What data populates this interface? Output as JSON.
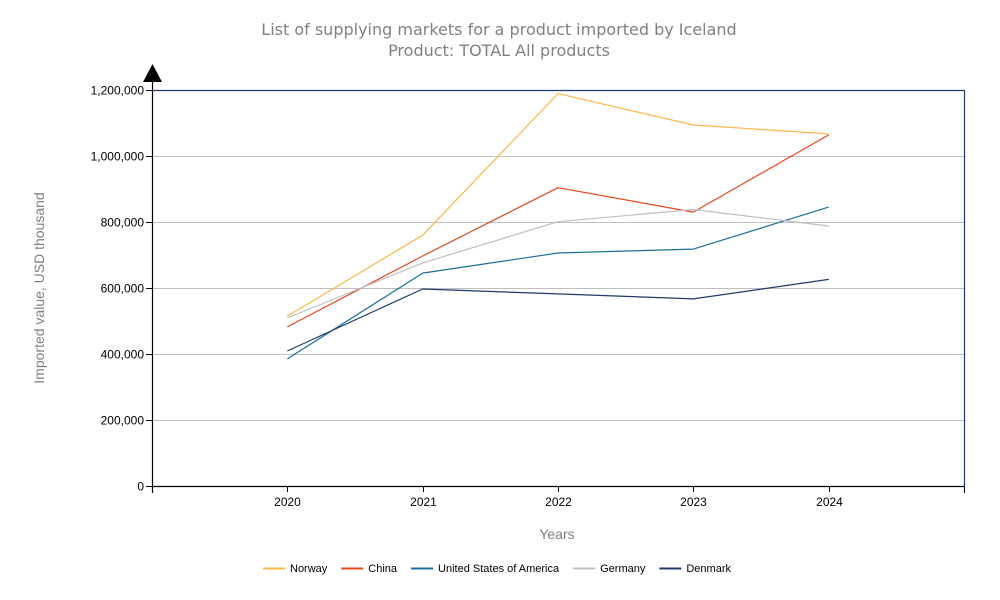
{
  "chart_data": {
    "type": "line",
    "title": "List of supplying markets for a product imported by Iceland",
    "subtitle": "Product: TOTAL All products",
    "xlabel": "Years",
    "ylabel": "Imported value, USD thousand",
    "categories": [
      "2020",
      "2021",
      "2022",
      "2023",
      "2024"
    ],
    "ylim": [
      0,
      1200000
    ],
    "yticks": [
      0,
      200000,
      400000,
      600000,
      800000,
      1000000,
      1200000
    ],
    "ytick_labels": [
      "0",
      "200,000",
      "400,000",
      "600,000",
      "800,000",
      "1,000,000",
      "1,200,000"
    ],
    "grid": "horizontal",
    "legend_position": "bottom",
    "series": [
      {
        "name": "Norway",
        "color": "#F9B84A",
        "values": [
          515000,
          760000,
          1189000,
          1094000,
          1067000
        ]
      },
      {
        "name": "China",
        "color": "#E0481C",
        "values": [
          482000,
          697000,
          904000,
          830000,
          1064000
        ]
      },
      {
        "name": "United States of America",
        "color": "#1B6E98",
        "values": [
          385000,
          645000,
          706000,
          718000,
          845000
        ]
      },
      {
        "name": "Germany",
        "color": "#BFBFBF",
        "values": [
          509000,
          676000,
          801000,
          838000,
          788000
        ]
      },
      {
        "name": "Denmark",
        "color": "#1D3A68",
        "values": [
          409000,
          597000,
          582000,
          567000,
          626000
        ]
      }
    ]
  }
}
